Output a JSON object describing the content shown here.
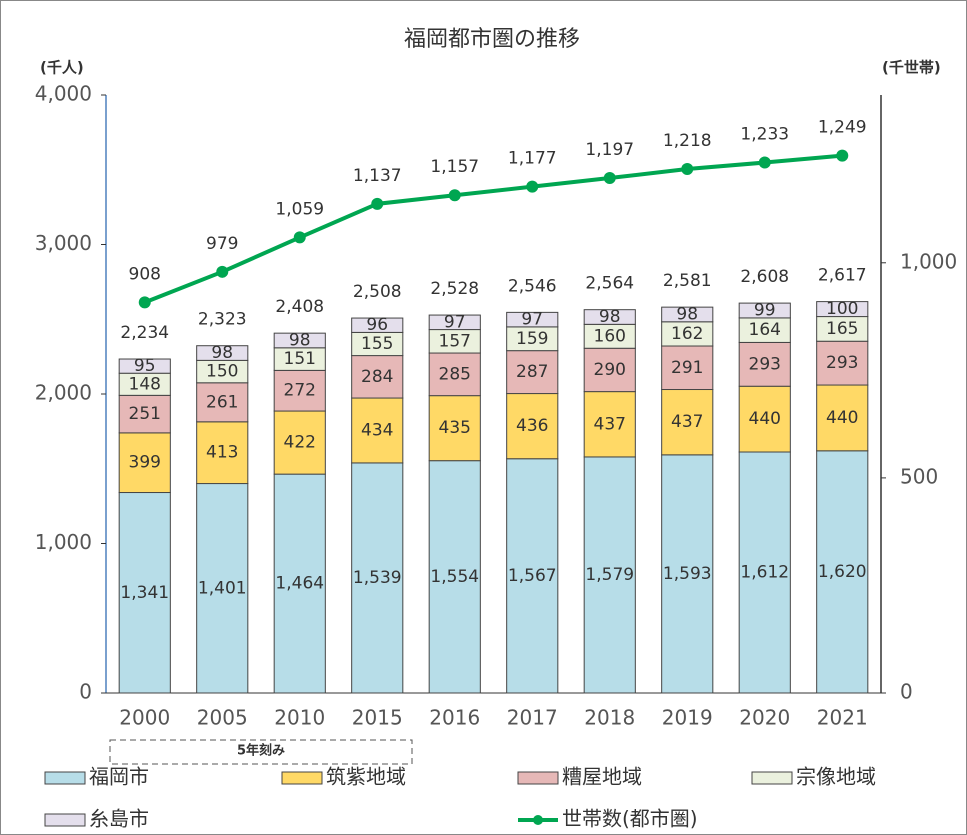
{
  "chart_data": {
    "type": "stacked-bar-line",
    "title": "福岡都市圏の推移",
    "y_label": "(千人)",
    "y2_label": "(千世帯)",
    "annotation": "5年刻み",
    "legend": "bottom",
    "categories": [
      "2000",
      "2005",
      "2010",
      "2015",
      "2016",
      "2017",
      "2018",
      "2019",
      "2020",
      "2021"
    ],
    "series": [
      {
        "name": "福岡市",
        "color": "#b7dde8",
        "values": [
          1341,
          1401,
          1464,
          1539,
          1554,
          1567,
          1579,
          1593,
          1612,
          1620
        ],
        "value_labels": [
          "1,341",
          "1,401",
          "1,464",
          "1,539",
          "1,554",
          "1,567",
          "1,579",
          "1,593",
          "1,612",
          "1,620"
        ]
      },
      {
        "name": "筑紫地域",
        "color": "#ffd966",
        "values": [
          399,
          413,
          422,
          434,
          435,
          436,
          437,
          437,
          440,
          440
        ]
      },
      {
        "name": "糟屋地域",
        "color": "#e6b8b7",
        "values": [
          251,
          261,
          272,
          284,
          285,
          287,
          290,
          291,
          293,
          293
        ]
      },
      {
        "name": "宗像地域",
        "color": "#ebf1de",
        "values": [
          148,
          150,
          151,
          155,
          157,
          159,
          160,
          162,
          164,
          165
        ]
      },
      {
        "name": "糸島市",
        "color": "#e4dfec",
        "values": [
          95,
          98,
          98,
          96,
          97,
          97,
          98,
          98,
          99,
          100
        ]
      },
      {
        "name": "世帯数(都市圏)",
        "color": "#00a651",
        "axis": "y2",
        "type": "line",
        "values": [
          908,
          979,
          1059,
          1137,
          1157,
          1177,
          1197,
          1218,
          1233,
          1249
        ],
        "value_labels": [
          "908",
          "979",
          "1,059",
          "1,137",
          "1,157",
          "1,177",
          "1,197",
          "1,218",
          "1,233",
          "1,249"
        ]
      }
    ],
    "totals": {
      "values": [
        2234,
        2323,
        2408,
        2508,
        2528,
        2546,
        2564,
        2581,
        2608,
        2617
      ],
      "value_labels": [
        "2,234",
        "2,323",
        "2,408",
        "2,508",
        "2,528",
        "2,546",
        "2,564",
        "2,581",
        "2,608",
        "2,617"
      ]
    },
    "ylim": [
      0,
      4000
    ],
    "yticks": [
      0,
      {
        "value": 1000,
        "label": "1,000"
      },
      {
        "value": 2000,
        "label": "2,000"
      },
      {
        "value": 3000,
        "label": "3,000"
      },
      {
        "value": 4000,
        "label": "4,000"
      }
    ],
    "y2lim": [
      0,
      1390
    ],
    "y2ticks": [
      0,
      500,
      {
        "value": 1000,
        "label": "1,000"
      }
    ]
  }
}
